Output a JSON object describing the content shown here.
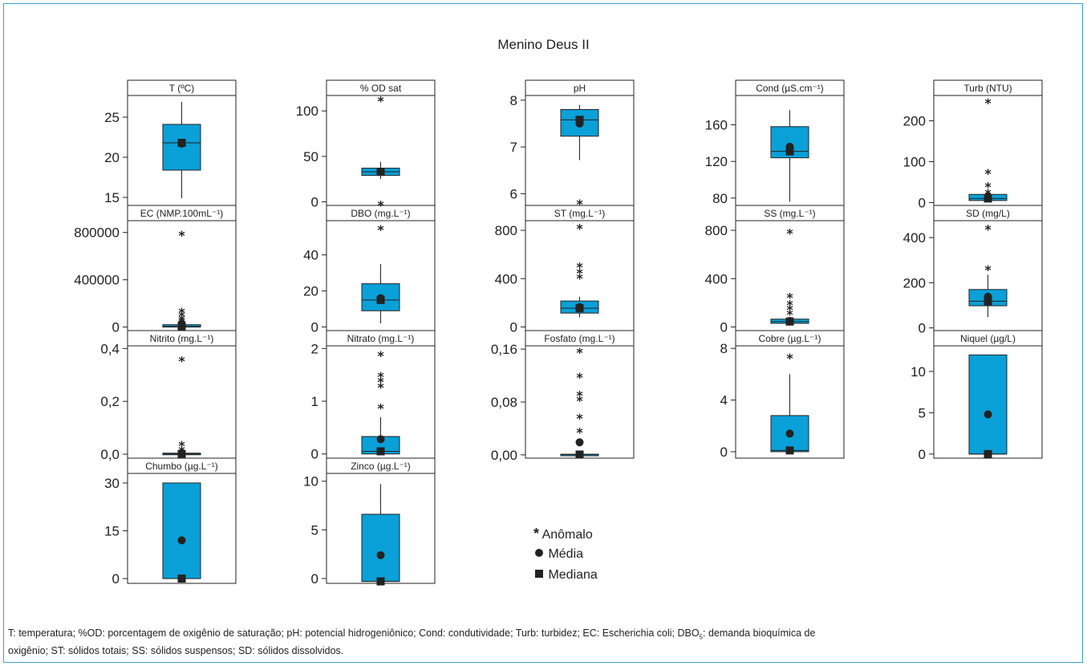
{
  "title": "Menino Deus II",
  "colors": {
    "box": "#0aa0d8",
    "frame": "#3aa0d8",
    "ink": "#222222"
  },
  "legend": {
    "anomalo": "Anômalo",
    "media": "Média",
    "mediana": "Mediana",
    "anomalo_symbol": "*"
  },
  "caption": {
    "line1_a": "T: temperatura; %OD: porcentagem de oxigênio de saturação; pH: potencial hidrogeniônico; Cond: condutividade; Turb: turbidez; EC: Escherichia coli; DBO",
    "line1_sub": "5",
    "line1_b": ": demanda bioquímica de",
    "line2": "oxigênio; ST: sólidos totais; SS: sólidos suspensos; SD: sólidos dissolvidos."
  },
  "chart_data": [
    {
      "type": "box",
      "label": "T (ºC)",
      "ylim": [
        14,
        27.7
      ],
      "ticks": [
        15,
        20,
        25
      ],
      "tick_labels": [
        "15",
        "20",
        "25"
      ],
      "box": {
        "q1": 18.4,
        "q3": 24.1,
        "median": 21.8,
        "whisker_low": 14.9,
        "whisker_high": 26.9
      },
      "mean": 21.7,
      "outliers": []
    },
    {
      "type": "box",
      "label": "% OD sat",
      "ylim": [
        -4,
        117
      ],
      "ticks": [
        0,
        50,
        100
      ],
      "tick_labels": [
        "0",
        "50",
        "100"
      ],
      "box": {
        "q1": 29,
        "q3": 37,
        "median": 33,
        "whisker_low": 25,
        "whisker_high": 44
      },
      "mean": 33,
      "outliers": [
        113,
        -2
      ]
    },
    {
      "type": "box",
      "label": "pH",
      "ylim": [
        5.75,
        8.1
      ],
      "ticks": [
        6,
        7,
        8
      ],
      "tick_labels": [
        "6",
        "7",
        "8"
      ],
      "box": {
        "q1": 7.23,
        "q3": 7.8,
        "median": 7.58,
        "whisker_low": 6.72,
        "whisker_high": 7.9
      },
      "mean": 7.5,
      "outliers": [
        5.82
      ]
    },
    {
      "type": "box",
      "label": "Cond (µS.cm⁻¹)",
      "ylim": [
        72,
        192
      ],
      "ticks": [
        80,
        120,
        160
      ],
      "tick_labels": [
        "80",
        "120",
        "160"
      ],
      "box": {
        "q1": 124,
        "q3": 158,
        "median": 131,
        "whisker_low": 76,
        "whisker_high": 176
      },
      "mean": 136,
      "outliers": []
    },
    {
      "type": "box",
      "label": "Turb (NTU)",
      "ylim": [
        -7,
        262
      ],
      "ticks": [
        0,
        100,
        200
      ],
      "tick_labels": [
        "0",
        "100",
        "200"
      ],
      "box": {
        "q1": 5,
        "q3": 20,
        "median": 10,
        "whisker_low": 0,
        "whisker_high": 22
      },
      "mean": 14,
      "outliers": [
        248,
        75,
        43,
        26
      ]
    },
    {
      "type": "box",
      "label": "EC (NMP.100mL⁻¹)",
      "ylim": [
        -30000,
        900000
      ],
      "ticks": [
        0,
        400000,
        800000
      ],
      "tick_labels": [
        "0",
        "400000",
        "800000"
      ],
      "box": {
        "q1": 0,
        "q3": 20000,
        "median": 6000,
        "whisker_low": 0,
        "whisker_high": 30000
      },
      "mean": 30000,
      "outliers": [
        790000,
        140000,
        110000,
        80000,
        60000
      ]
    },
    {
      "type": "box",
      "label": "DBO (mg.L⁻¹)",
      "ylim": [
        -2,
        59
      ],
      "ticks": [
        0,
        20,
        40
      ],
      "tick_labels": [
        "0",
        "20",
        "40"
      ],
      "box": {
        "q1": 9,
        "q3": 24,
        "median": 15,
        "whisker_low": 2,
        "whisker_high": 35
      },
      "mean": 16,
      "outliers": [
        55
      ]
    },
    {
      "type": "box",
      "label": "ST (mg.L⁻¹)",
      "ylim": [
        -30,
        880
      ],
      "ticks": [
        0,
        400,
        800
      ],
      "tick_labels": [
        "0",
        "400",
        "800"
      ],
      "box": {
        "q1": 115,
        "q3": 215,
        "median": 155,
        "whisker_low": 80,
        "whisker_high": 250
      },
      "mean": 165,
      "outliers": [
        830,
        510,
        460,
        420
      ]
    },
    {
      "type": "box",
      "label": "SS (mg.L⁻¹)",
      "ylim": [
        -30,
        880
      ],
      "ticks": [
        0,
        400,
        800
      ],
      "tick_labels": [
        "0",
        "400",
        "800"
      ],
      "box": {
        "q1": 30,
        "q3": 65,
        "median": 45,
        "whisker_low": 10,
        "whisker_high": 80
      },
      "mean": 50,
      "outliers": [
        790,
        260,
        200,
        160,
        120
      ]
    },
    {
      "type": "box",
      "label": "SD (mg/L)",
      "ylim": [
        -12,
        475
      ],
      "ticks": [
        0,
        200,
        400
      ],
      "tick_labels": [
        "0",
        "200",
        "400"
      ],
      "box": {
        "q1": 98,
        "q3": 170,
        "median": 118,
        "whisker_low": 48,
        "whisker_high": 235
      },
      "mean": 138,
      "outliers": [
        445,
        265
      ]
    },
    {
      "type": "box",
      "label": "Nitrito (mg.L⁻¹)",
      "ylim": [
        -0.015,
        0.41
      ],
      "ticks": [
        0,
        0.2,
        0.4
      ],
      "tick_labels": [
        "0,0",
        "0,2",
        "0,4"
      ],
      "box": {
        "q1": 0,
        "q3": 0.004,
        "median": 0.001,
        "whisker_low": 0,
        "whisker_high": 0.006
      },
      "mean": 0.005,
      "outliers": [
        0.36,
        0.04,
        0.02
      ]
    },
    {
      "type": "box",
      "label": "Nitrato (mg.L⁻¹)",
      "ylim": [
        -0.08,
        2.05
      ],
      "ticks": [
        0,
        1,
        2
      ],
      "tick_labels": [
        "0",
        "1",
        "2"
      ],
      "box": {
        "q1": 0,
        "q3": 0.33,
        "median": 0.05,
        "whisker_low": 0,
        "whisker_high": 0.7
      },
      "mean": 0.28,
      "outliers": [
        1.9,
        1.5,
        1.4,
        1.3,
        0.9
      ]
    },
    {
      "type": "box",
      "label": "Fosfato (mg.L⁻¹)",
      "ylim": [
        -0.005,
        0.165
      ],
      "ticks": [
        0,
        0.08,
        0.16
      ],
      "tick_labels": [
        "0,00",
        "0,08",
        "0,16"
      ],
      "box": {
        "q1": 0,
        "q3": 0.001,
        "median": 0.0005,
        "whisker_low": 0,
        "whisker_high": 0.002
      },
      "mean": 0.019,
      "outliers": [
        0.158,
        0.12,
        0.093,
        0.085,
        0.058,
        0.037
      ]
    },
    {
      "type": "box",
      "label": "Cobre (µg.L⁻¹)",
      "ylim": [
        -0.5,
        8.2
      ],
      "ticks": [
        0,
        4,
        8
      ],
      "tick_labels": [
        "0",
        "4",
        "8"
      ],
      "box": {
        "q1": 0,
        "q3": 2.8,
        "median": 0.1,
        "whisker_low": 0,
        "whisker_high": 6
      },
      "mean": 1.4,
      "outliers": [
        7.4
      ]
    },
    {
      "type": "box",
      "label": "Niquel (µg/L)",
      "ylim": [
        -0.5,
        13.1
      ],
      "ticks": [
        0,
        5,
        10
      ],
      "tick_labels": [
        "0",
        "5",
        "10"
      ],
      "box": {
        "q1": 0,
        "q3": 12,
        "median": 0,
        "whisker_low": 0,
        "whisker_high": 12
      },
      "mean": 4.8,
      "outliers": []
    },
    {
      "type": "box",
      "label": "Chumbo (µg.L⁻¹)",
      "ylim": [
        -1.5,
        33
      ],
      "ticks": [
        0,
        15,
        30
      ],
      "tick_labels": [
        "0",
        "15",
        "30"
      ],
      "box": {
        "q1": 0,
        "q3": 30,
        "median": 0,
        "whisker_low": 0,
        "whisker_high": 30
      },
      "mean": 12,
      "outliers": []
    },
    {
      "type": "box",
      "label": "Zinco (µg.L⁻¹)",
      "ylim": [
        -0.5,
        10.8
      ],
      "ticks": [
        0,
        5,
        10
      ],
      "tick_labels": [
        "0",
        "5",
        "10"
      ],
      "box": {
        "q1": -0.3,
        "q3": 6.6,
        "median": -0.3,
        "whisker_low": -0.3,
        "whisker_high": 9.7
      },
      "mean": 2.4,
      "outliers": []
    }
  ]
}
